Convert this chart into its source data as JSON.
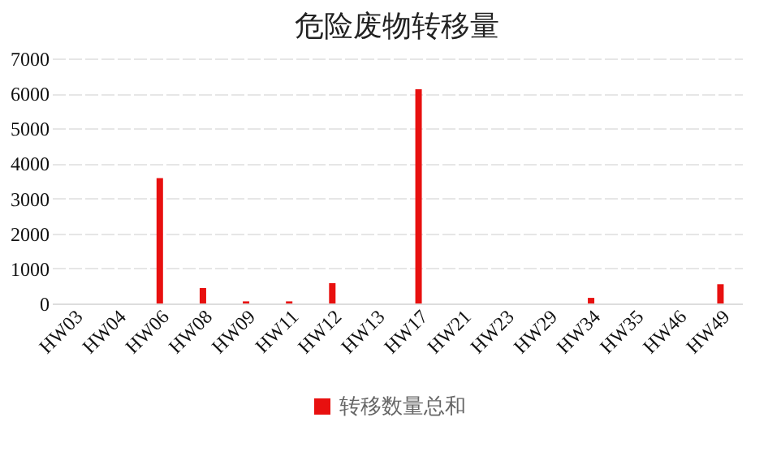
{
  "chart_data": {
    "type": "bar",
    "title": "危险废物转移量",
    "categories": [
      "HW03",
      "HW04",
      "HW06",
      "HW08",
      "HW09",
      "HW11",
      "HW12",
      "HW13",
      "HW17",
      "HW21",
      "HW23",
      "HW29",
      "HW34",
      "HW35",
      "HW46",
      "HW49"
    ],
    "series": [
      {
        "name": "转移数量总和",
        "color": "#e8100f",
        "values": [
          0,
          0,
          3580,
          440,
          60,
          60,
          580,
          0,
          6120,
          0,
          0,
          0,
          160,
          0,
          0,
          550
        ]
      }
    ],
    "ylim": [
      0,
      7000
    ],
    "yticks": [
      0,
      1000,
      2000,
      3000,
      4000,
      5000,
      6000,
      7000
    ],
    "grid": "y",
    "legend": "bottom"
  }
}
